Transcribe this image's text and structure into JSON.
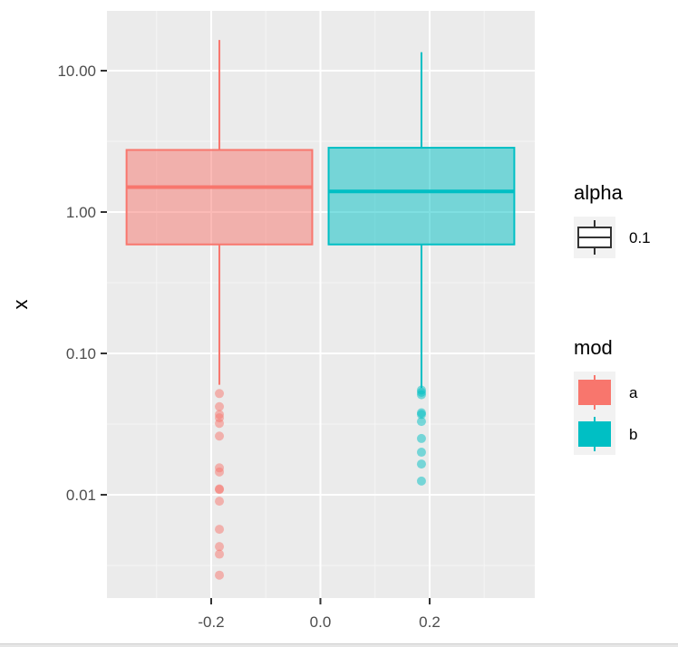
{
  "chart_data": {
    "type": "boxplot",
    "y_scale": "log10",
    "ylabel": "x",
    "xlabel": "",
    "xlim": [
      -0.395,
      0.395
    ],
    "ylim": [
      0.00155,
      25
    ],
    "x_ticks": [
      {
        "value": -0.2,
        "label": "-0.2"
      },
      {
        "value": 0.0,
        "label": "0.0"
      },
      {
        "value": 0.2,
        "label": "0.2"
      }
    ],
    "y_ticks": [
      {
        "value": 10,
        "label": "10.00"
      },
      {
        "value": 1,
        "label": "1.00"
      },
      {
        "value": 0.1,
        "label": "0.10"
      },
      {
        "value": 0.01,
        "label": "0.01"
      }
    ],
    "series": [
      {
        "name": "a",
        "color": "#F8766D",
        "x_left": -0.355,
        "x_right": -0.015,
        "x_center": -0.185,
        "whisker_low": 0.06,
        "q1": 0.59,
        "median": 1.5,
        "q3": 2.75,
        "whisker_high": 16.5,
        "outliers": [
          0.052,
          0.042,
          0.037,
          0.035,
          0.032,
          0.026,
          0.0155,
          0.0145,
          0.011,
          0.0109,
          0.009,
          0.0057,
          0.0043,
          0.0038,
          0.0027
        ]
      },
      {
        "name": "b",
        "color": "#00BFC4",
        "x_left": 0.015,
        "x_right": 0.355,
        "x_center": 0.185,
        "whisker_low": 0.057,
        "q1": 0.59,
        "median": 1.4,
        "q3": 2.85,
        "whisker_high": 13.5,
        "outliers": [
          0.055,
          0.053,
          0.051,
          0.038,
          0.037,
          0.033,
          0.025,
          0.02,
          0.0165,
          0.0125
        ]
      }
    ],
    "box_alpha": 0.5,
    "grid": true,
    "legend_position": "right",
    "legends": [
      {
        "title": "alpha",
        "items": [
          {
            "label": "0.1",
            "color": "#333333",
            "style": "outline"
          }
        ]
      },
      {
        "title": "mod",
        "items": [
          {
            "label": "a",
            "color": "#F8766D",
            "style": "fill"
          },
          {
            "label": "b",
            "color": "#00BFC4",
            "style": "fill"
          }
        ]
      }
    ]
  }
}
